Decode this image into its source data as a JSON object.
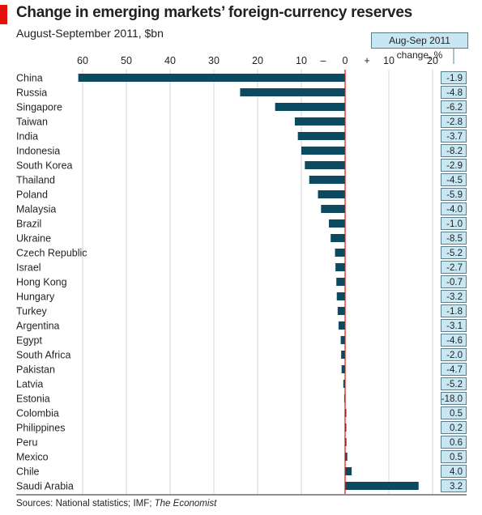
{
  "chart_data": {
    "type": "bar",
    "title": "Change in emerging markets’ foreign-currency reserves",
    "subtitle": "August-September 2011, $bn",
    "source_prefix": "Sources: National statistics; IMF; ",
    "source_italic": "The Economist",
    "xlim": [
      -65,
      24
    ],
    "ticks": [
      {
        "value": -60,
        "label": "60"
      },
      {
        "value": -50,
        "label": "50"
      },
      {
        "value": -40,
        "label": "40"
      },
      {
        "value": -30,
        "label": "30"
      },
      {
        "value": -20,
        "label": "20"
      },
      {
        "value": -10,
        "label": "10"
      },
      {
        "value": 0,
        "label": "0"
      },
      {
        "value": 10,
        "label": "10"
      },
      {
        "value": 20,
        "label": "20"
      }
    ],
    "sign_markers": {
      "negative": "–",
      "positive": "+"
    },
    "pct_header": "Aug-Sep 2011 change, %",
    "bar_color": "#0c4a60",
    "zero_line_color": "#e3120b",
    "categories": [
      "China",
      "Russia",
      "Singapore",
      "Taiwan",
      "India",
      "Indonesia",
      "South Korea",
      "Thailand",
      "Poland",
      "Malaysia",
      "Brazil",
      "Ukraine",
      "Czech Republic",
      "Israel",
      "Hong Kong",
      "Hungary",
      "Turkey",
      "Argentina",
      "Egypt",
      "South Africa",
      "Pakistan",
      "Latvia",
      "Estonia",
      "Colombia",
      "Philippines",
      "Peru",
      "Mexico",
      "Chile",
      "Saudi Arabia"
    ],
    "values": [
      -61,
      -24,
      -16,
      -11.5,
      -10.8,
      -10,
      -9.2,
      -8.2,
      -6.2,
      -5.5,
      -3.7,
      -3.3,
      -2.3,
      -2.2,
      -2.0,
      -1.9,
      -1.7,
      -1.5,
      -1.0,
      -0.9,
      -0.8,
      -0.4,
      -0.2,
      0.2,
      0.2,
      0.3,
      0.5,
      1.5,
      16.8
    ],
    "pct_change": [
      "-1.9",
      "-4.8",
      "-6.2",
      "-2.8",
      "-3.7",
      "-8.2",
      "-2.9",
      "-4.5",
      "-5.9",
      "-4.0",
      "-1.0",
      "-8.5",
      "-5.2",
      "-2.7",
      "-0.7",
      "-3.2",
      "-1.8",
      "-3.1",
      "-4.6",
      "-2.0",
      "-4.7",
      "-5.2",
      "-18.0",
      "0.5",
      "0.2",
      "0.6",
      "0.5",
      "4.0",
      "3.2"
    ]
  }
}
